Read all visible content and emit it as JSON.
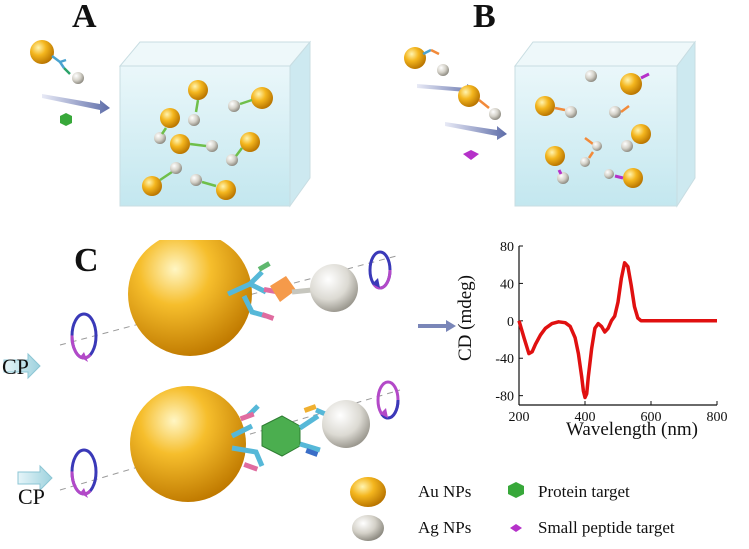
{
  "panels": {
    "a": "A",
    "b": "B",
    "c": "C"
  },
  "cp_label": "CP",
  "legend": {
    "au": "Au NPs",
    "ag": "Ag NPs",
    "protein": "Protein target",
    "peptide": "Small peptide target"
  },
  "colors": {
    "gold": "#F2B01E",
    "silver": "#D8D6CF",
    "cd_curve": "#E01010",
    "water": "#BFE6EE",
    "protein": "#38A83A",
    "peptide": "#B531C9",
    "hapten": "#F28A3A"
  },
  "chart_data": {
    "type": "line",
    "xlabel": "Wavelength (nm)",
    "ylabel": "CD (mdeg)",
    "xlim": [
      200,
      800
    ],
    "ylim": [
      -90,
      80
    ],
    "x_ticks": [
      200,
      400,
      600,
      800
    ],
    "y_ticks": [
      80,
      40,
      0,
      -40,
      -80
    ],
    "series": [
      {
        "x": [
          200,
          215,
          230,
          240,
          250,
          265,
          280,
          300,
          320,
          340,
          355,
          370,
          380,
          390,
          395,
          400,
          405,
          410,
          420,
          430,
          440,
          450,
          460,
          470,
          480,
          490,
          500,
          510,
          520,
          530,
          540,
          550,
          560,
          570,
          580,
          600,
          650,
          700,
          750,
          800
        ],
        "y": [
          0,
          -18,
          -35,
          -33,
          -25,
          -15,
          -8,
          -3,
          -1,
          -2,
          -6,
          -18,
          -35,
          -60,
          -75,
          -82,
          -78,
          -60,
          -30,
          -8,
          -3,
          -6,
          -12,
          -8,
          0,
          5,
          20,
          45,
          62,
          58,
          38,
          15,
          3,
          0,
          0,
          0,
          0,
          0,
          0,
          0
        ]
      }
    ]
  }
}
